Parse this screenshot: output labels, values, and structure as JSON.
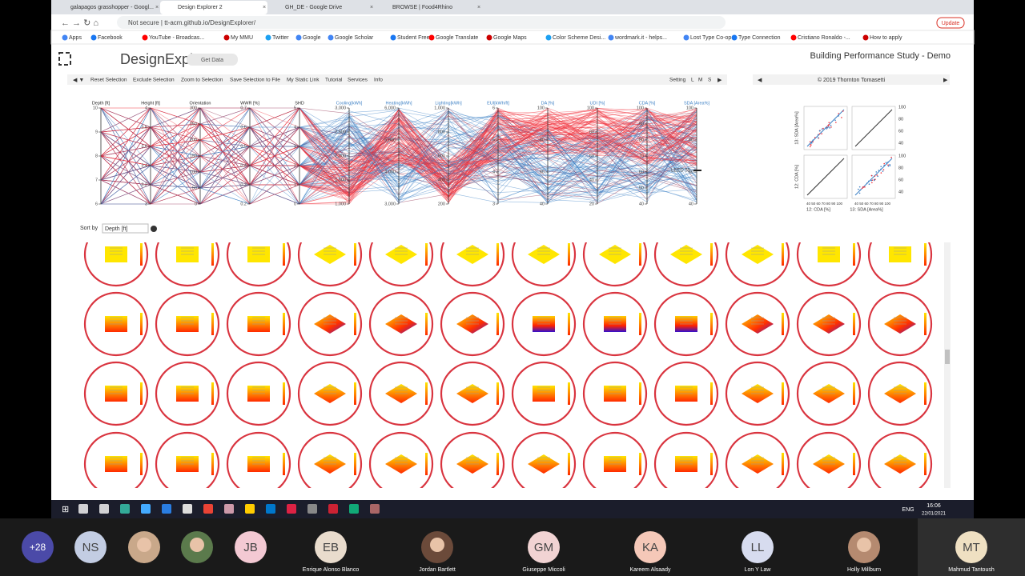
{
  "browser": {
    "tabs": [
      "galapagos grasshopper - Googl...",
      "Design Explorer 2",
      "GH_DE - Google Drive",
      "BROWSE | Food4Rhino"
    ],
    "address": "Not secure | tt-acm.github.io/DesignExplorer/",
    "update": "Update",
    "bookmarks": [
      "Apps",
      "Facebook",
      "YouTube - Broadcas...",
      "My MMU",
      "Twitter",
      "Google",
      "Google Scholar",
      "Student Free",
      "Google Translate",
      "Google Maps",
      "Color Scheme Desi...",
      "wordmark.it - helps...",
      "Lost Type Co-op",
      "Type Connection",
      "Cristiano Ronaldo -...",
      "How to apply"
    ]
  },
  "app": {
    "logo": "DesignExplorer",
    "get_data": "Get Data",
    "title": "Building Performance Study - Demo",
    "toolbar": [
      "Reset Selection",
      "Exclude Selection",
      "Zoom to Selection",
      "Save Selection to File",
      "My Static Link",
      "Tutorial",
      "Services",
      "Info"
    ],
    "sizes": [
      "Setting",
      "L",
      "M",
      "S"
    ],
    "copyright": "© 2019 Thornton Tomasetti",
    "axes": [
      {
        "name": "Depth [ft]",
        "ticks": [
          "10",
          "9",
          "8",
          "7",
          "6"
        ]
      },
      {
        "name": "Height [ft]",
        "ticks": [
          "4",
          "3.8",
          "3.6",
          "3.4",
          "3.2",
          "3"
        ]
      },
      {
        "name": "Orientation",
        "ticks": [
          "300",
          "250",
          "200",
          "150",
          "100",
          "50",
          "0"
        ]
      },
      {
        "name": "WWR [%]",
        "ticks": [
          "0.7",
          "0.6",
          "0.5",
          "0.4",
          "0.3",
          "0.2"
        ]
      },
      {
        "name": "SHD",
        "ticks": [
          "5",
          "4",
          "3",
          "2",
          "1",
          "0"
        ]
      },
      {
        "name": "Cooling[kWh]",
        "ticks": [
          "3,000",
          "2,500",
          "2,000",
          "1,500",
          "1,000"
        ]
      },
      {
        "name": "Heating[kWh]",
        "ticks": [
          "6,000",
          "5,000",
          "4,000",
          "3,000"
        ]
      },
      {
        "name": "Lighting[kWh]",
        "ticks": [
          "1,000",
          "800",
          "600",
          "400",
          "200"
        ]
      },
      {
        "name": "EUI[kWh/ft]",
        "ticks": [
          "6",
          "5",
          "4",
          "3"
        ]
      },
      {
        "name": "DA [%]",
        "ticks": [
          "100",
          "80",
          "60",
          "40"
        ]
      },
      {
        "name": "UDI [%]",
        "ticks": [
          "100",
          "80",
          "60",
          "40",
          "20"
        ]
      },
      {
        "name": "CDA [%]",
        "ticks": [
          "100",
          "90",
          "80",
          "70",
          "60",
          "50",
          "40"
        ]
      },
      {
        "name": "SDA [Area%]",
        "ticks": [
          "100",
          "80",
          "60",
          "40"
        ]
      }
    ],
    "leed_label": "LEED 55",
    "scatter": {
      "y_labels": [
        "13: SDA [Area%]",
        "12: CDA [%]"
      ],
      "x_labels": [
        "12: CDA [%]",
        "13: SDA [Area%]"
      ],
      "ticks": [
        "100",
        "80",
        "60",
        "40"
      ],
      "x_ticks": "40 50 60 70 80 90 100"
    },
    "sort_label": "Sort by",
    "sort_value": "Depth [ft]"
  },
  "taskbar": {
    "lang": "ENG",
    "time": "16:06",
    "date": "22/01/2021"
  },
  "participants": [
    {
      "initials": "+28"
    },
    {
      "initials": "NS"
    },
    {
      "photo": true
    },
    {
      "photo": true
    },
    {
      "initials": "JB"
    },
    {
      "initials": "EB",
      "name": "Enrique Alonso Blanco"
    },
    {
      "photo": true,
      "name": "Jordan Bartlett"
    },
    {
      "initials": "GM",
      "name": "Giuseppe Miccoli"
    },
    {
      "initials": "KA",
      "name": "Kareem Alsaady"
    },
    {
      "initials": "LL",
      "name": "Lon Y Law"
    },
    {
      "photo": true,
      "name": "Holly Millburn"
    },
    {
      "initials": "MT",
      "name": "Mahmud Tantoush"
    }
  ]
}
